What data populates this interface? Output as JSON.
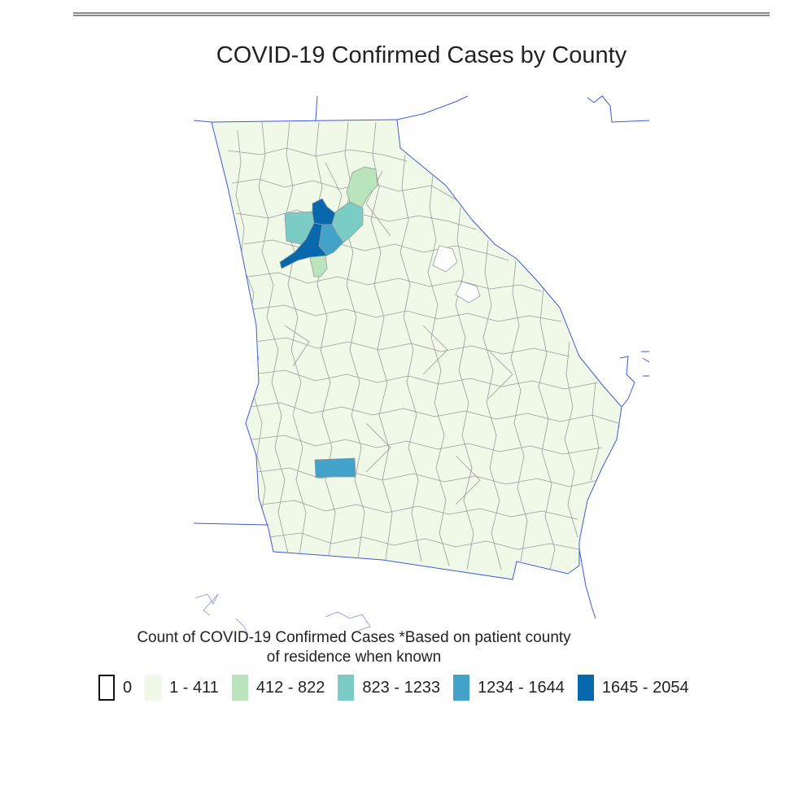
{
  "map": {
    "title": "COVID-19 Confirmed Cases by County",
    "region": "Georgia",
    "colors": {
      "bin_0": "#ffffff",
      "bin_1": "#f0f9e8",
      "bin_2": "#bae4bc",
      "bin_3": "#7bccc4",
      "bin_4": "#43a2ca",
      "bin_5": "#0868ac",
      "county_border": "#999999",
      "state_border": "#3a5bd9"
    },
    "highlighted_counties": [
      {
        "bin": 2,
        "shape": "north-corridor"
      },
      {
        "bin": 2,
        "shape": "south-of-metro"
      },
      {
        "bin": 3,
        "shape": "west-metro"
      },
      {
        "bin": 3,
        "shape": "northeast-metro"
      },
      {
        "bin": 4,
        "shape": "east-metro"
      },
      {
        "bin": 5,
        "shape": "north-metro"
      },
      {
        "bin": 5,
        "shape": "central-metro"
      },
      {
        "bin": 4,
        "shape": "southwest"
      }
    ],
    "zero_counties": 2
  },
  "legend": {
    "title_line1": "Count of COVID-19 Confirmed Cases *Based on patient county",
    "title_line2": "of residence when known",
    "items": [
      {
        "label": "0",
        "color": "#ffffff",
        "outlined": true
      },
      {
        "label": "1 - 411",
        "color": "#f0f9e8",
        "outlined": false
      },
      {
        "label": "412 - 822",
        "color": "#bae4bc",
        "outlined": false
      },
      {
        "label": "823 - 1233",
        "color": "#7bccc4",
        "outlined": false
      },
      {
        "label": "1234 - 1644",
        "color": "#43a2ca",
        "outlined": false
      },
      {
        "label": "1645 - 2054",
        "color": "#0868ac",
        "outlined": false
      }
    ]
  }
}
